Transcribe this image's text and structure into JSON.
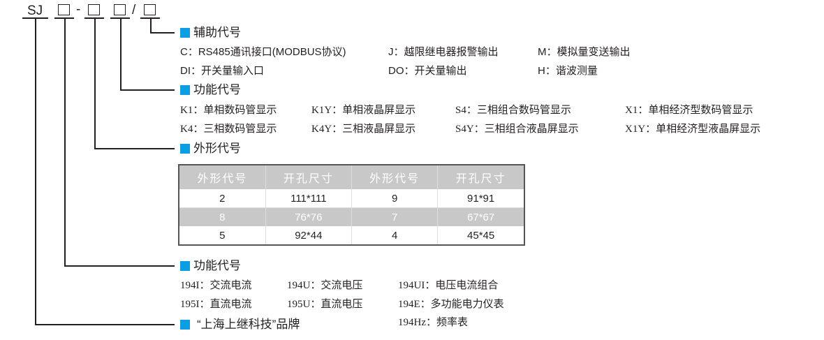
{
  "code": {
    "prefix": "SJ",
    "dash": "-",
    "slash": "/"
  },
  "colors": {
    "accent": "#0a9ee3",
    "header_bg": "#c8c8c8"
  },
  "aux": {
    "title": "辅助代号",
    "items": [
      "C：RS485通讯接口(MODBUS协议)",
      "J：越限继电器报警输出",
      "M：模拟量变送输出",
      "DI：开关量输入口",
      "DO：开关量输出",
      "H：谐波测量"
    ]
  },
  "display": {
    "title": "功能代号",
    "items": [
      "K1：单相数码管显示",
      "K1Y：单相液晶屏显示",
      "S4：三相组合数码管显示",
      "X1：单相经济型数码管显示",
      "K4：三相数码管显示",
      "K4Y：三相液晶屏显示",
      "S4Y：三相组合液晶屏显示",
      "X1Y：单相经济型液晶屏显示"
    ]
  },
  "shape": {
    "title": "外形代号",
    "headers": [
      "外形代号",
      "开孔尺寸",
      "外形代号",
      "开孔尺寸"
    ],
    "rows": [
      [
        "2",
        "111*111",
        "9",
        "91*91"
      ],
      [
        "8",
        "76*76",
        "7",
        "67*67"
      ],
      [
        "5",
        "92*44",
        "4",
        "45*45"
      ]
    ]
  },
  "function": {
    "title": "功能代号",
    "items": [
      "194I：交流电流",
      "194U：交流电压",
      "194UI：电压电流组合",
      "195I：直流电流",
      "195U：直流电压",
      "194E：多功能电力仪表",
      "194Hz：频率表"
    ]
  },
  "brand": {
    "title": "“上海上继科技”品牌"
  }
}
